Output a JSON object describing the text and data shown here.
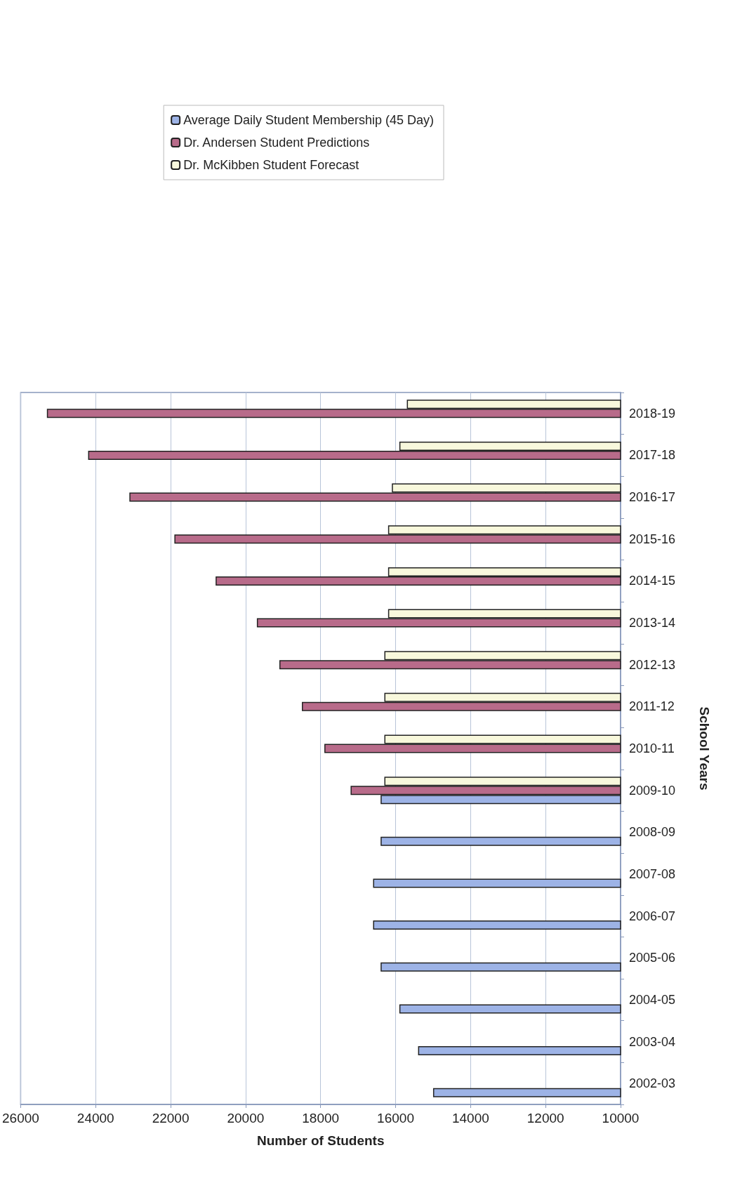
{
  "chart_data": {
    "type": "bar",
    "orientation": "horizontal",
    "xlabel": "Number of Students",
    "ylabel": "School Years",
    "categories": [
      "2018-19",
      "2017-18",
      "2016-17",
      "2015-16",
      "2014-15",
      "2013-14",
      "2012-13",
      "2011-12",
      "2010-11",
      "2009-10",
      "2008-09",
      "2007-08",
      "2006-07",
      "2005-06",
      "2004-05",
      "2003-04",
      "2002-03"
    ],
    "series": [
      {
        "name": "Average Daily Student Membership (45 Day)",
        "color": "#9db3e6",
        "values": [
          null,
          null,
          null,
          null,
          null,
          null,
          null,
          null,
          null,
          16400,
          16400,
          16600,
          16600,
          16400,
          15900,
          15400,
          15000
        ]
      },
      {
        "name": "Dr. Andersen Student Predictions",
        "color": "#b86b8a",
        "values": [
          25300,
          24200,
          23100,
          21900,
          20800,
          19700,
          19100,
          18500,
          17900,
          17200,
          null,
          null,
          null,
          null,
          null,
          null,
          null
        ]
      },
      {
        "name": "Dr. McKibben Student Forecast",
        "color": "#f8f8dc",
        "values": [
          15700,
          15900,
          16100,
          16200,
          16200,
          16200,
          16300,
          16300,
          16300,
          16300,
          null,
          null,
          null,
          null,
          null,
          null,
          null
        ]
      }
    ],
    "xlim": [
      26000,
      10000
    ],
    "xticks": [
      26000,
      24000,
      22000,
      20000,
      18000,
      16000,
      14000,
      12000,
      10000
    ],
    "grid": "x",
    "legend": "top right"
  }
}
